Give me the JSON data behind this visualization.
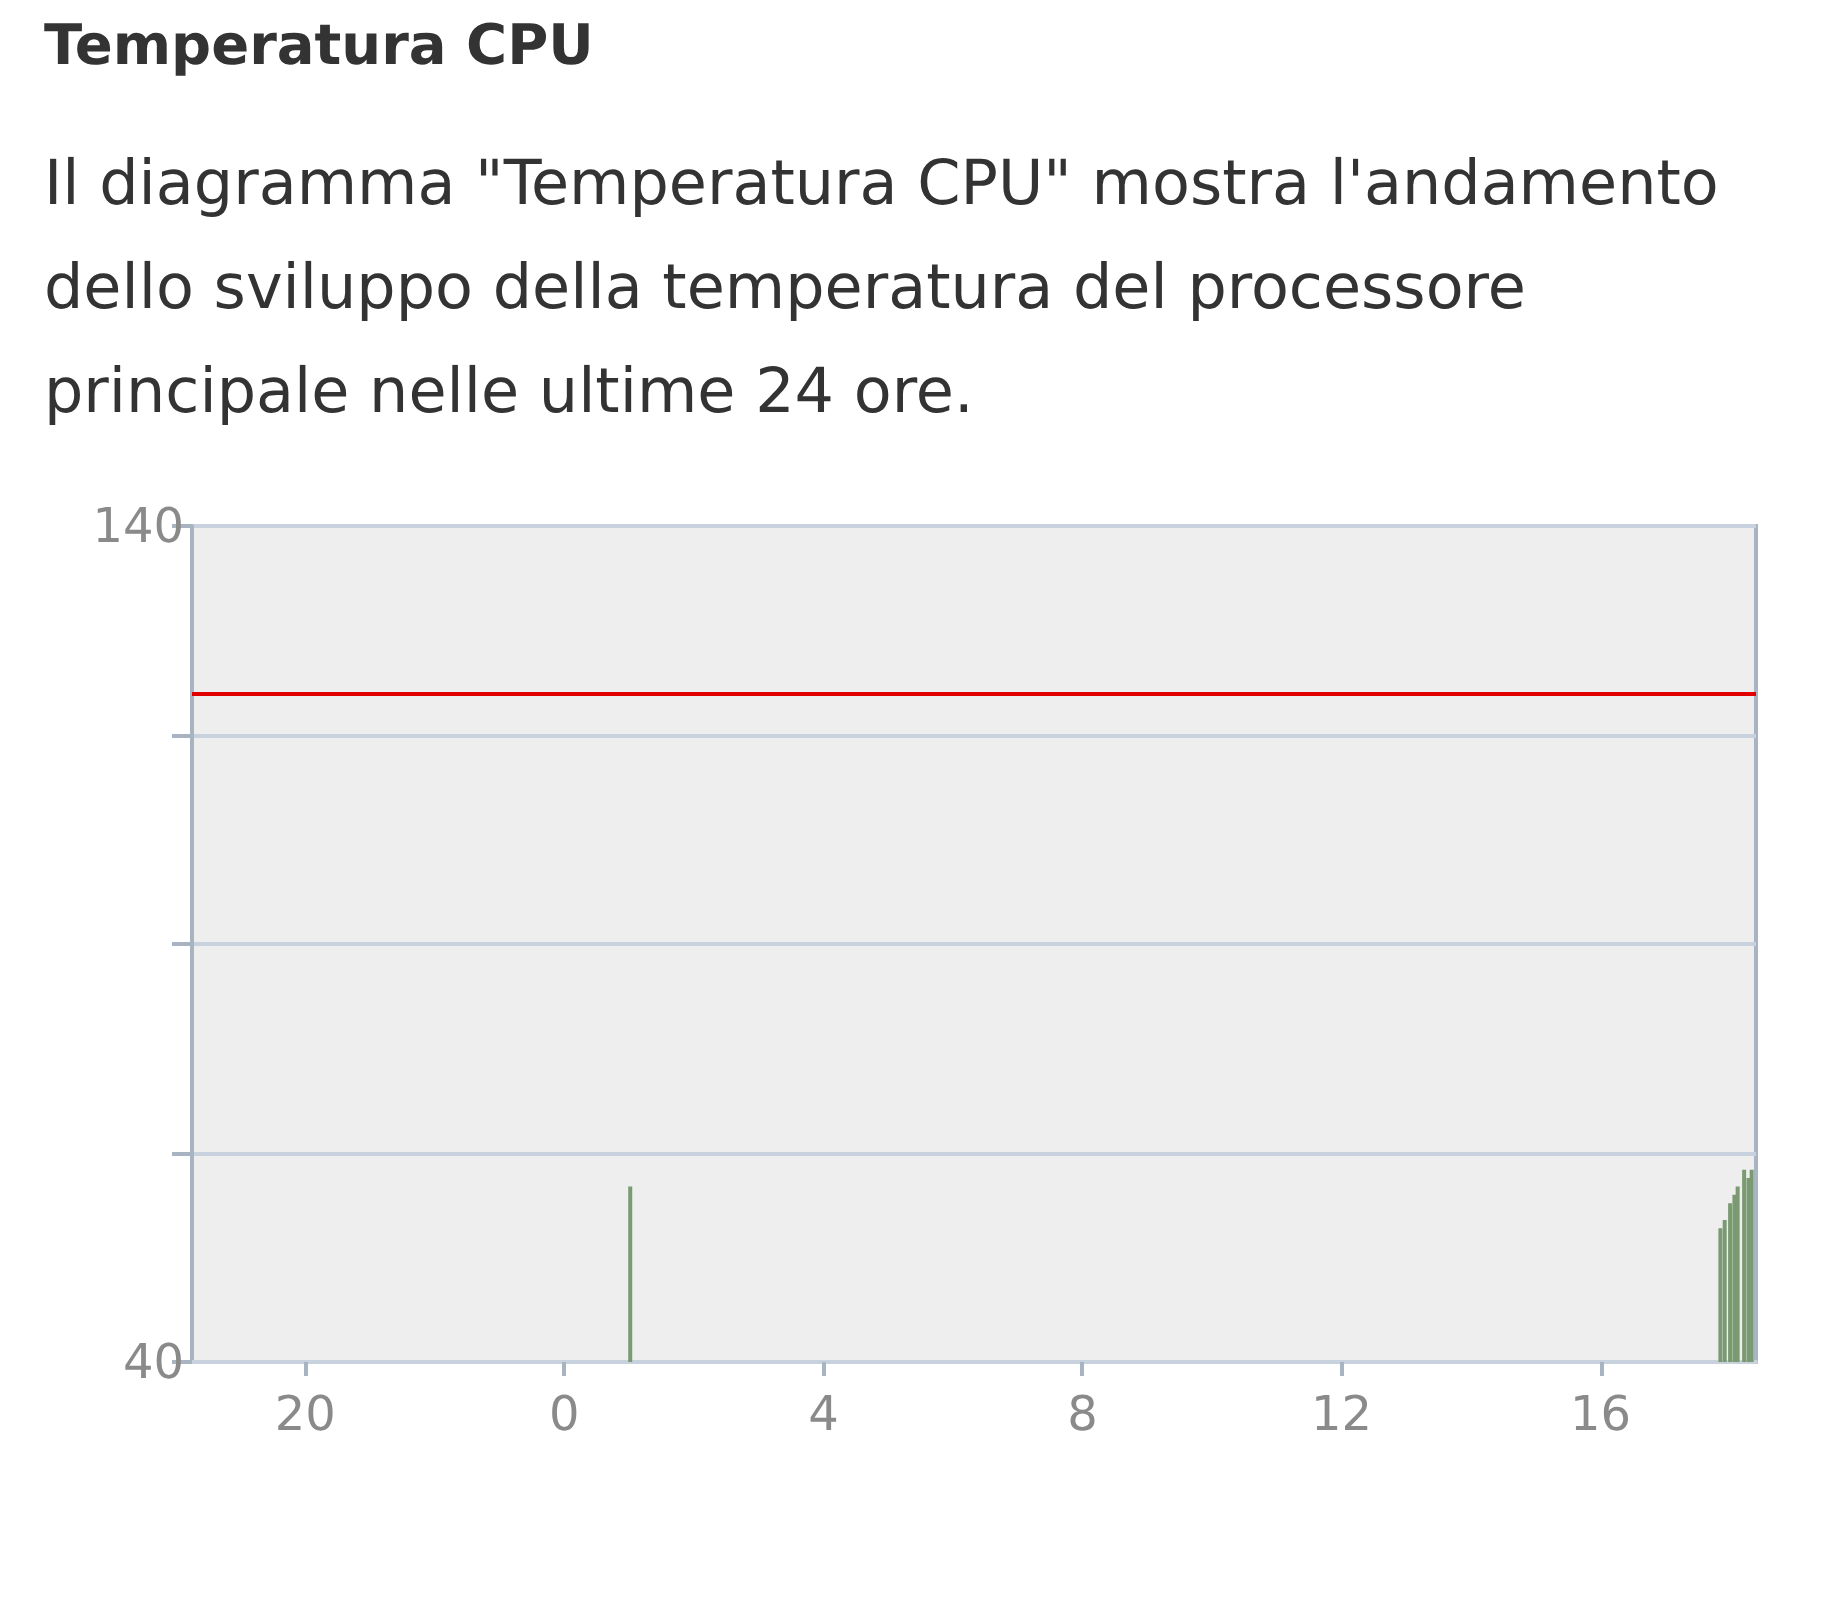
{
  "chart_data": {
    "type": "bar",
    "title": "Temperatura CPU",
    "subtitle": "Il diagramma \"Temperatura CPU\" mostra l'andamento dello sviluppo della temperatura del processore principale nelle ultime 24 ore.",
    "x": [
      "--01-02T01:01",
      "--01-02T17:51",
      "--01-02T17:55",
      "--01-02T18:00",
      "--01-02T18:04",
      "--01-02T18:07",
      "--01-02T18:13",
      "--01-02T18:17",
      "--01-02T18:20"
    ],
    "values": [
      61,
      56,
      57,
      59,
      60,
      61,
      63,
      62,
      63
    ],
    "color": "#7a9a72",
    "xlim": [
      "--01-01T18:15",
      "--01-02T18:24"
    ],
    "xticks": [
      {
        "value": "--01-01T20:00",
        "label": "20"
      },
      {
        "value": "--01-02T00:00",
        "label": "0"
      },
      {
        "value": "--01-02T04:00",
        "label": "4"
      },
      {
        "value": "--01-02T08:00",
        "label": "8"
      },
      {
        "value": "--01-02T12:00",
        "label": "12"
      },
      {
        "value": "--01-02T16:00",
        "label": "16"
      }
    ],
    "ylim": [
      40,
      140
    ],
    "yticks": [
      40,
      {
        "value": 65,
        "label": null
      },
      {
        "value": 90,
        "label": null
      },
      {
        "value": 115,
        "label": null
      },
      140
    ],
    "ref_lines": [
      {
        "axis": "y",
        "value": 120,
        "color": "#e00000"
      }
    ],
    "grid": "y"
  }
}
